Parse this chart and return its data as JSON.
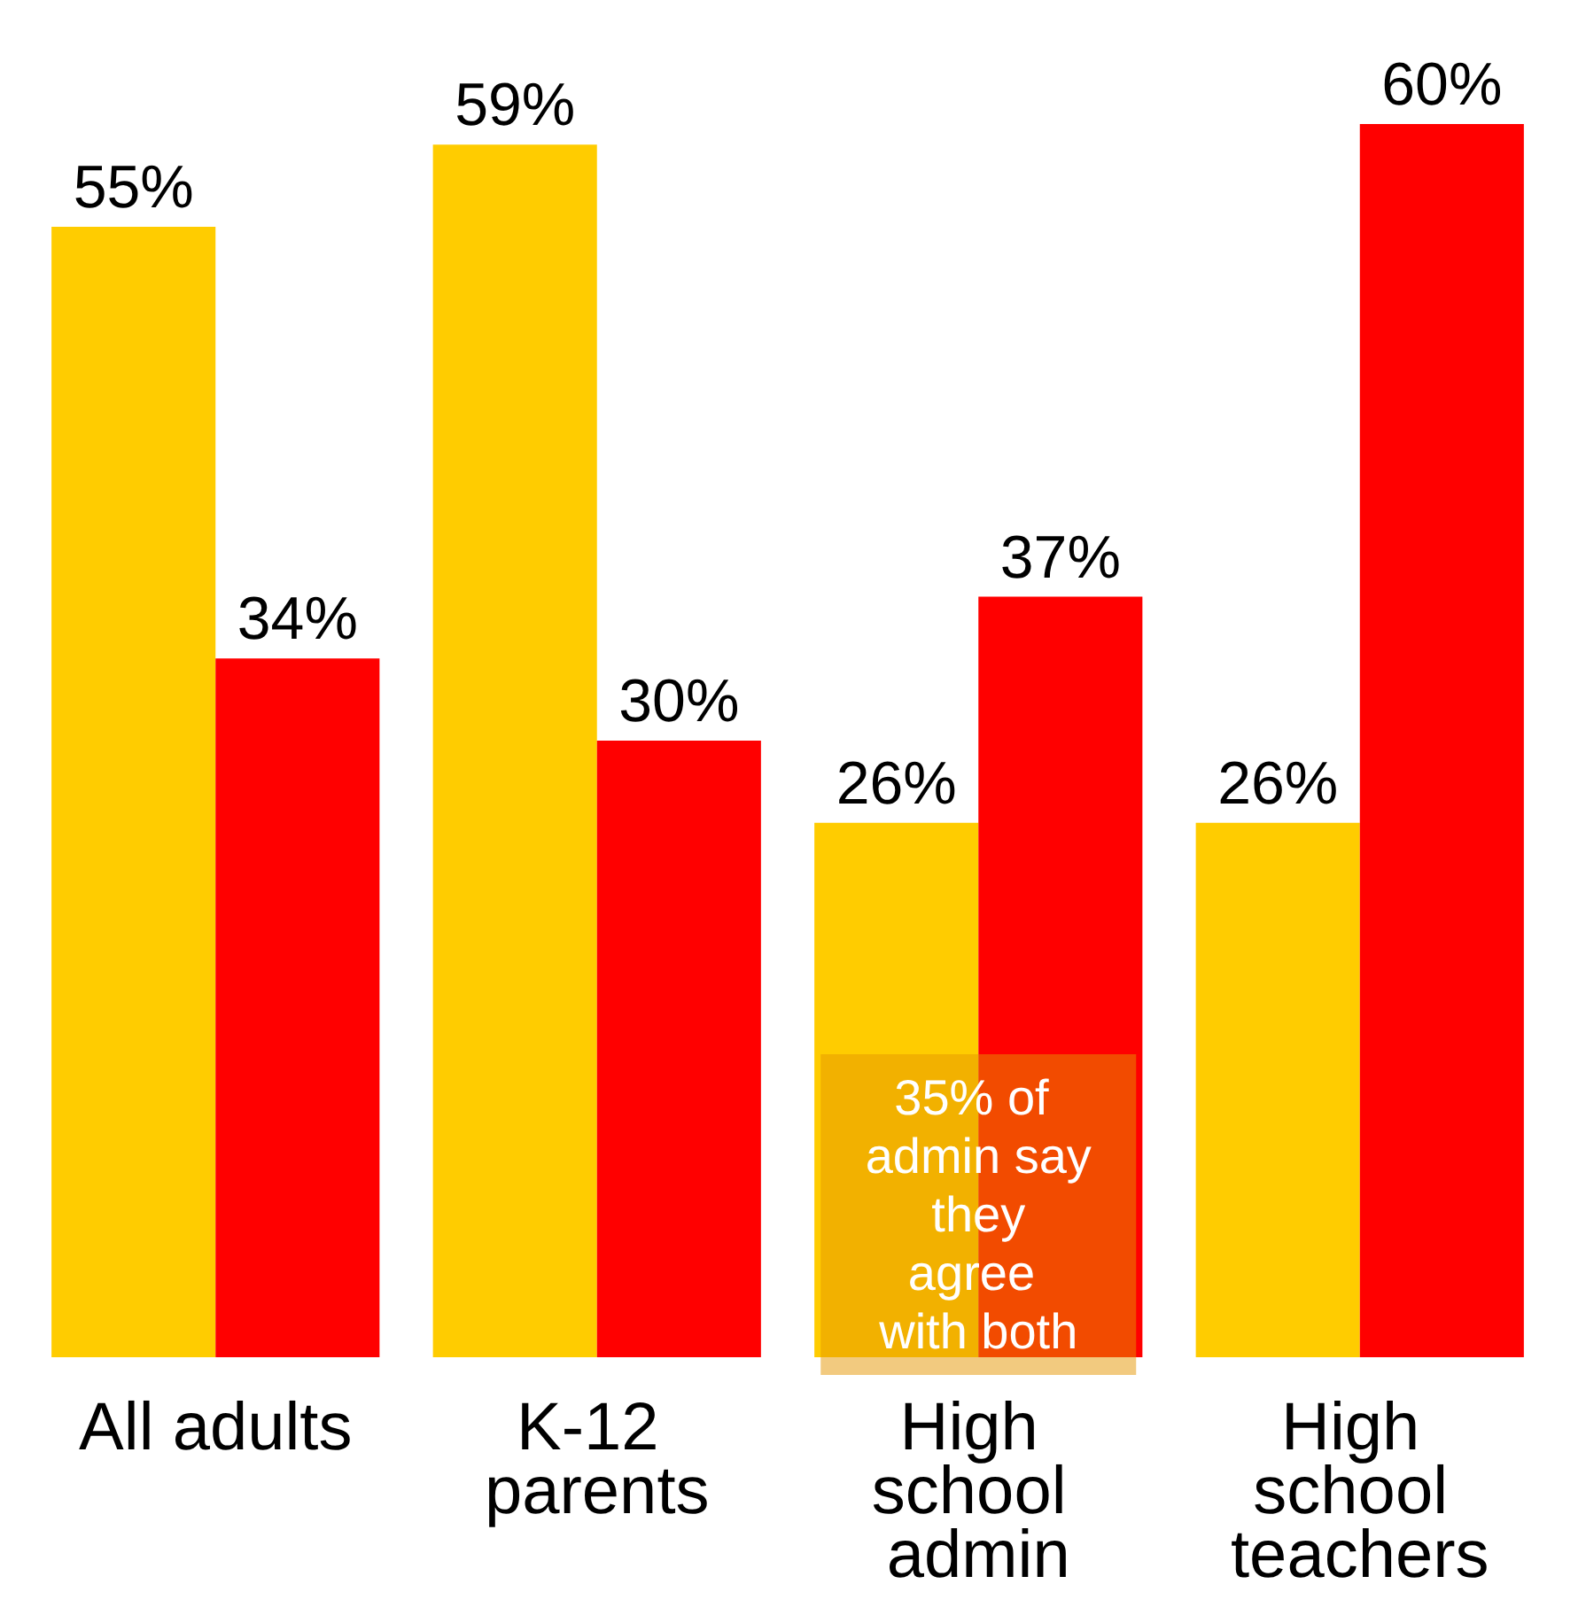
{
  "chart_data": {
    "type": "bar",
    "categories": [
      "All adults",
      "K-12 parents",
      "High school admin",
      "High school teachers"
    ],
    "series": [
      {
        "color": "#ffcc00",
        "values": [
          55,
          59,
          26,
          26
        ],
        "value_labels": [
          "55%",
          "59%",
          "26%",
          "26%"
        ]
      },
      {
        "color": "#ff0000",
        "values": [
          34,
          30,
          37,
          60
        ],
        "value_labels": [
          "34%",
          "30%",
          "37%",
          "60%"
        ]
      }
    ],
    "grid": false,
    "annotations": [
      "35% of admin say they agree with both"
    ]
  }
}
